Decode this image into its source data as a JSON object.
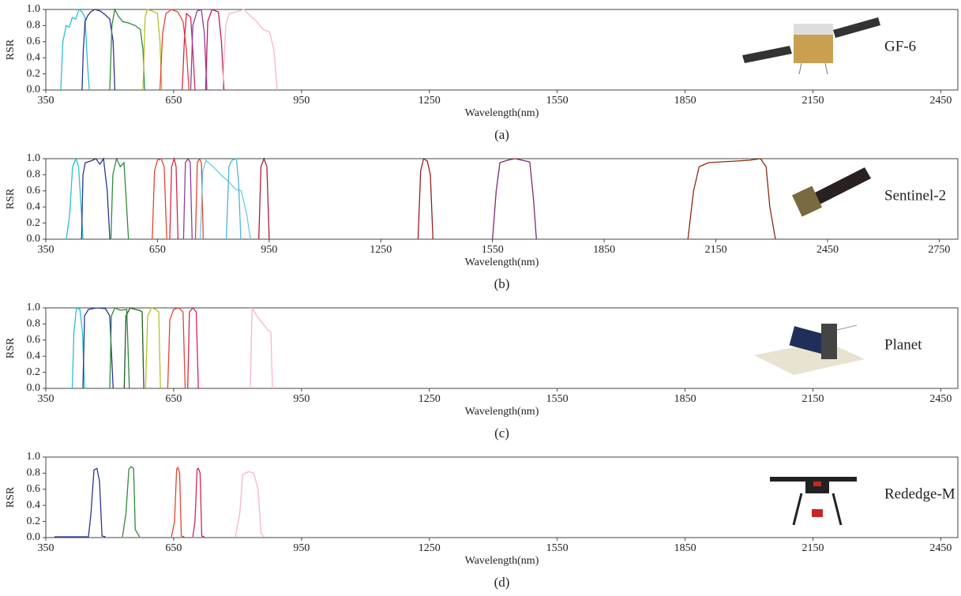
{
  "chart_data": [
    {
      "type": "line",
      "annotation": "GF-6",
      "caption": "(a)",
      "x_label": "Wavelength(nm)",
      "y_label": "RSR",
      "xlim": [
        350,
        2490
      ],
      "xticks": [
        350,
        650,
        950,
        1250,
        1550,
        1850,
        2150,
        2450
      ],
      "ylim": [
        0,
        1
      ],
      "yticks": [
        {
          "value": 0,
          "label": "0.0"
        },
        {
          "value": 0.2,
          "label": "0.2"
        },
        {
          "value": 0.4,
          "label": "0.4"
        },
        {
          "value": 0.6,
          "label": "0.6"
        },
        {
          "value": 0.8,
          "label": "0.8"
        },
        {
          "value": 1,
          "label": "1.0"
        }
      ],
      "series": [
        {
          "color": "#2bbfd0",
          "x": [
            385,
            390,
            398,
            405,
            412,
            420,
            428,
            435,
            442,
            448,
            452
          ],
          "values": [
            0,
            0.6,
            0.8,
            0.78,
            0.9,
            0.88,
            1.0,
            0.97,
            0.9,
            0.3,
            0
          ]
        },
        {
          "color": "#283593",
          "x": [
            435,
            438,
            442,
            448,
            455,
            465,
            478,
            490,
            500,
            508,
            512
          ],
          "values": [
            0,
            0.5,
            0.85,
            0.92,
            0.97,
            1.0,
            0.98,
            0.93,
            0.88,
            0.6,
            0
          ]
        },
        {
          "color": "#2e8b3a",
          "x": [
            500,
            505,
            512,
            520,
            530,
            545,
            560,
            572,
            578,
            582
          ],
          "values": [
            0,
            0.8,
            1.0,
            0.92,
            0.85,
            0.83,
            0.8,
            0.75,
            0.5,
            0
          ]
        },
        {
          "color": "#b5c22a",
          "x": [
            578,
            583,
            588,
            600,
            612,
            618,
            622
          ],
          "values": [
            0,
            0.9,
            1.0,
            0.98,
            0.95,
            0.6,
            0
          ]
        },
        {
          "color": "#e2452f",
          "x": [
            618,
            624,
            632,
            645,
            660,
            672,
            680,
            686
          ],
          "values": [
            0,
            0.7,
            0.95,
            1.0,
            0.97,
            0.85,
            0.5,
            0
          ]
        },
        {
          "color": "#d6254f",
          "x": [
            670,
            675,
            680,
            690,
            695,
            700
          ],
          "values": [
            0,
            0.6,
            0.95,
            0.9,
            0.5,
            0
          ]
        },
        {
          "color": "#8e3d9e",
          "x": [
            690,
            695,
            705,
            715,
            722,
            728
          ],
          "values": [
            0,
            0.8,
            0.98,
            1.0,
            0.7,
            0
          ]
        },
        {
          "color": "#c2185b",
          "x": [
            725,
            730,
            740,
            755,
            762,
            768
          ],
          "values": [
            0,
            0.85,
            1.0,
            0.97,
            0.6,
            0
          ]
        },
        {
          "color": "#f7b5c8",
          "x": [
            765,
            772,
            780,
            795,
            815,
            830,
            845,
            860,
            875,
            885,
            893
          ],
          "values": [
            0,
            0.8,
            0.95,
            0.97,
            1.0,
            0.92,
            0.85,
            0.75,
            0.72,
            0.5,
            0
          ]
        }
      ]
    },
    {
      "type": "line",
      "annotation": "Sentinel-2",
      "caption": "(b)",
      "x_label": "Wavelength(nm)",
      "y_label": "RSR",
      "xlim": [
        350,
        2800
      ],
      "xticks": [
        350,
        650,
        950,
        1250,
        1550,
        1850,
        2150,
        2450,
        2750
      ],
      "ylim": [
        0,
        1
      ],
      "yticks": [
        {
          "value": 0,
          "label": "0.0"
        },
        {
          "value": 0.2,
          "label": "0.2"
        },
        {
          "value": 0.4,
          "label": "0.4"
        },
        {
          "value": 0.6,
          "label": "0.6"
        },
        {
          "value": 0.8,
          "label": "0.8"
        },
        {
          "value": 1,
          "label": "1.0"
        }
      ],
      "series": [
        {
          "color": "#2bbfd0",
          "x": [
            405,
            414,
            422,
            431,
            438,
            446,
            450
          ],
          "values": [
            0,
            0.3,
            0.9,
            1.0,
            0.9,
            0.3,
            0
          ]
        },
        {
          "color": "#283593",
          "x": [
            446,
            450,
            456,
            470,
            485,
            495,
            505,
            515,
            522
          ],
          "values": [
            0,
            0.8,
            0.95,
            0.97,
            1.0,
            0.93,
            1.0,
            0.6,
            0
          ]
        },
        {
          "color": "#2e8b3a",
          "x": [
            525,
            530,
            540,
            550,
            560,
            566,
            572
          ],
          "values": [
            0,
            0.8,
            1.0,
            0.9,
            0.95,
            0.5,
            0
          ]
        },
        {
          "color": "#e2452f",
          "x": [
            636,
            642,
            650,
            660,
            668,
            675
          ],
          "values": [
            0,
            0.85,
            0.98,
            1.0,
            0.9,
            0
          ]
        },
        {
          "color": "#d6254f",
          "x": [
            683,
            688,
            695,
            700,
            705
          ],
          "values": [
            0,
            0.9,
            1.0,
            0.9,
            0
          ]
        },
        {
          "color": "#8e3d9e",
          "x": [
            720,
            725,
            732,
            738,
            743
          ],
          "values": [
            0,
            0.95,
            1.0,
            0.95,
            0
          ]
        },
        {
          "color": "#e2452f",
          "x": [
            752,
            757,
            763,
            768,
            773
          ],
          "values": [
            0,
            0.95,
            1.0,
            0.95,
            0
          ]
        },
        {
          "color": "#6ec6e8",
          "x": [
            765,
            772,
            780,
            800,
            820,
            840,
            860,
            875,
            890,
            900
          ],
          "values": [
            0,
            0.85,
            0.98,
            0.9,
            0.8,
            0.72,
            0.62,
            0.6,
            0.3,
            0
          ]
        },
        {
          "color": "#4fb3e0",
          "x": [
            835,
            842,
            850,
            862,
            868,
            874
          ],
          "values": [
            0,
            0.9,
            0.98,
            1.0,
            0.7,
            0
          ]
        },
        {
          "color": "#a5203a",
          "x": [
            922,
            928,
            936,
            944,
            950
          ],
          "values": [
            0,
            0.9,
            1.0,
            0.9,
            0
          ]
        },
        {
          "color": "#9b1c1c",
          "x": [
            1350,
            1357,
            1365,
            1375,
            1383,
            1390
          ],
          "values": [
            0,
            0.85,
            1.0,
            0.97,
            0.8,
            0
          ]
        },
        {
          "color": "#7b2a6e",
          "x": [
            1550,
            1560,
            1570,
            1590,
            1610,
            1630,
            1650,
            1660,
            1668
          ],
          "values": [
            0,
            0.6,
            0.95,
            0.98,
            1.0,
            0.98,
            0.96,
            0.5,
            0
          ]
        },
        {
          "color": "#8b2a10",
          "x": [
            2075,
            2090,
            2105,
            2130,
            2160,
            2200,
            2240,
            2270,
            2285,
            2295,
            2310
          ],
          "values": [
            0,
            0.6,
            0.9,
            0.95,
            0.96,
            0.97,
            0.98,
            1.0,
            0.9,
            0.4,
            0
          ]
        }
      ]
    },
    {
      "type": "line",
      "annotation": "Planet",
      "caption": "(c)",
      "x_label": "Wavelength(nm)",
      "y_label": "RSR",
      "xlim": [
        350,
        2490
      ],
      "xticks": [
        350,
        650,
        950,
        1250,
        1550,
        1850,
        2150,
        2450
      ],
      "ylim": [
        0,
        1
      ],
      "yticks": [
        {
          "value": 0,
          "label": "0.0"
        },
        {
          "value": 0.2,
          "label": "0.2"
        },
        {
          "value": 0.4,
          "label": "0.4"
        },
        {
          "value": 0.6,
          "label": "0.6"
        },
        {
          "value": 0.8,
          "label": "0.8"
        },
        {
          "value": 1,
          "label": "1.0"
        }
      ],
      "series": [
        {
          "color": "#2bbfd0",
          "x": [
            412,
            416,
            422,
            430,
            436,
            441
          ],
          "values": [
            0,
            0.7,
            1.0,
            0.98,
            0.7,
            0
          ]
        },
        {
          "color": "#283593",
          "x": [
            437,
            441,
            450,
            470,
            490,
            500,
            508
          ],
          "values": [
            0,
            0.9,
            0.98,
            1.0,
            0.99,
            0.9,
            0
          ]
        },
        {
          "color": "#2e8b3a",
          "x": [
            500,
            504,
            512,
            525,
            540,
            546
          ],
          "values": [
            0,
            0.9,
            1.0,
            0.97,
            0.98,
            0
          ]
        },
        {
          "color": "#1b5e20",
          "x": [
            534,
            538,
            548,
            560,
            570,
            576,
            580
          ],
          "values": [
            0,
            0.9,
            1.0,
            0.98,
            0.97,
            0.95,
            0
          ]
        },
        {
          "color": "#b5c22a",
          "x": [
            584,
            589,
            598,
            608,
            615,
            619
          ],
          "values": [
            0,
            0.9,
            1.0,
            0.98,
            0.95,
            0
          ]
        },
        {
          "color": "#e2452f",
          "x": [
            636,
            641,
            650,
            662,
            672,
            677
          ],
          "values": [
            0,
            0.85,
            0.98,
            1.0,
            0.95,
            0
          ]
        },
        {
          "color": "#d6254f",
          "x": [
            683,
            687,
            695,
            703,
            708
          ],
          "values": [
            0,
            0.95,
            1.0,
            0.95,
            0
          ]
        },
        {
          "color": "#f7b5c8",
          "x": [
            830,
            834,
            845,
            860,
            872,
            878,
            882
          ],
          "values": [
            0,
            1.0,
            0.9,
            0.8,
            0.72,
            0.7,
            0
          ]
        }
      ]
    },
    {
      "type": "line",
      "annotation": "Rededge-M",
      "caption": "(d)",
      "x_label": "Wavelength(nm)",
      "y_label": "RSR",
      "xlim": [
        350,
        2490
      ],
      "xticks": [
        350,
        650,
        950,
        1250,
        1550,
        1850,
        2150,
        2450
      ],
      "ylim": [
        0,
        1
      ],
      "yticks": [
        {
          "value": 0,
          "label": "0.0"
        },
        {
          "value": 0.2,
          "label": "0.2"
        },
        {
          "value": 0.4,
          "label": "0.4"
        },
        {
          "value": 0.6,
          "label": "0.6"
        },
        {
          "value": 0.8,
          "label": "0.8"
        },
        {
          "value": 1,
          "label": "1.0"
        }
      ],
      "series": [
        {
          "color": "#283593",
          "x": [
            370,
            450,
            456,
            463,
            470,
            476,
            482,
            490
          ],
          "values": [
            0.01,
            0.01,
            0.3,
            0.84,
            0.86,
            0.7,
            0.02,
            0.01
          ]
        },
        {
          "color": "#2e8b3a",
          "x": [
            530,
            538,
            545,
            550,
            556,
            560,
            570
          ],
          "values": [
            0.01,
            0.3,
            0.85,
            0.88,
            0.86,
            0.1,
            0.01
          ]
        },
        {
          "color": "#e2452f",
          "x": [
            645,
            652,
            657,
            660,
            664,
            668,
            675
          ],
          "values": [
            0.01,
            0.2,
            0.85,
            0.87,
            0.8,
            0.02,
            0.01
          ]
        },
        {
          "color": "#d6254f",
          "x": [
            695,
            700,
            705,
            708,
            712,
            716,
            722
          ],
          "values": [
            0.01,
            0.2,
            0.85,
            0.86,
            0.8,
            0.02,
            0.01
          ]
        },
        {
          "color": "#f7b5c8",
          "x": [
            795,
            805,
            812,
            825,
            838,
            848,
            855,
            862
          ],
          "values": [
            0.01,
            0.3,
            0.78,
            0.82,
            0.8,
            0.6,
            0.05,
            0.01
          ]
        }
      ]
    }
  ]
}
